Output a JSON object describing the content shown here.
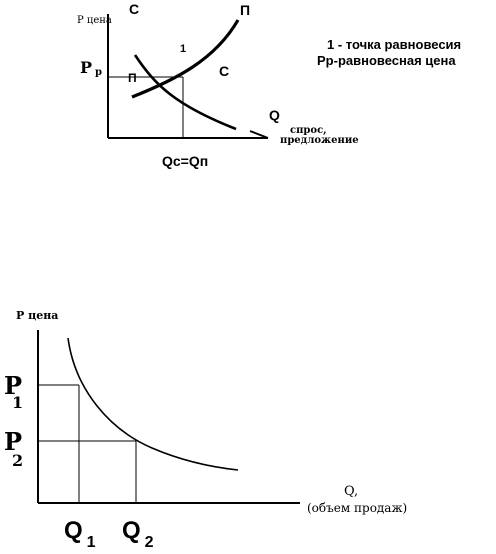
{
  "diagram1": {
    "y_axis_label": "Р цена",
    "demand_top_label": "С",
    "supply_top_label": "П",
    "equilibrium_point_label": "1",
    "price_label_main": "Р",
    "price_label_sub": "р",
    "supply_left_label": "П",
    "demand_right_label": "С",
    "q_label": "Q",
    "x_axis_caption_line1": "спрос,",
    "x_axis_caption_line2": "предложение",
    "equality_label": "Qс=Qп",
    "legend_line1": "1 - точка равновесия",
    "legend_line2": "Рр-равновесная цена"
  },
  "diagram2": {
    "y_axis_label": "Р цена",
    "p1_main": "P",
    "p1_sub": "1",
    "p2_main": "P",
    "p2_sub": "2",
    "q1_main": "Q",
    "q1_sub": "1",
    "q2_main": "Q",
    "q2_sub": "2",
    "q_axis_line1": "Q,",
    "q_axis_line2": "(объем продаж)"
  },
  "colors": {
    "ink": "#000000",
    "background": "#ffffff"
  }
}
